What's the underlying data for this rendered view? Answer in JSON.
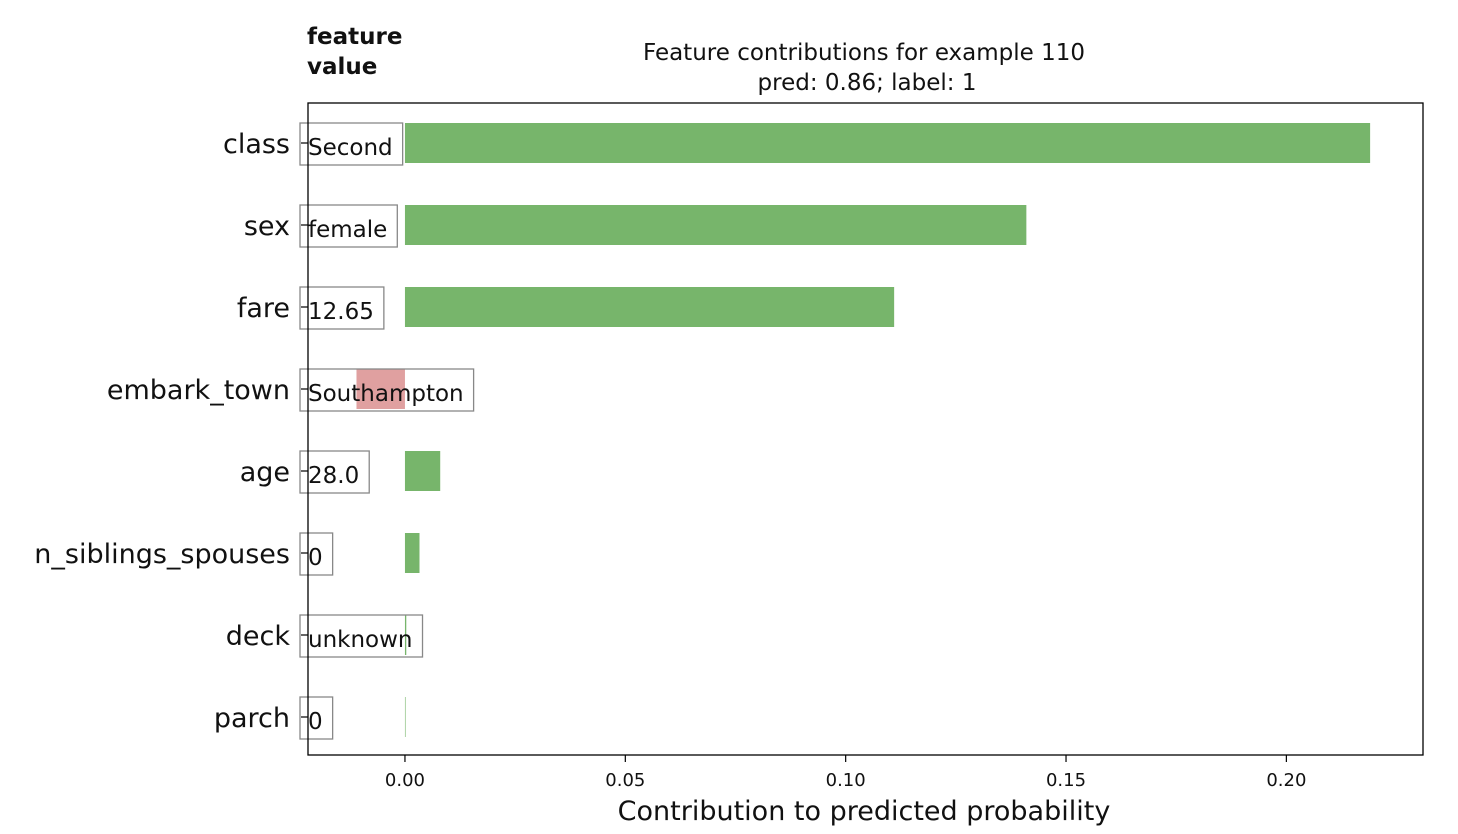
{
  "chart_data": {
    "type": "bar",
    "orientation": "horizontal",
    "title": "Feature contributions for example 110",
    "subtitle": "pred: 0.86; label: 1",
    "header": "feature\nvalue",
    "xlabel": "Contribution to predicted probability",
    "xlim": [
      -0.022,
      0.231
    ],
    "xticks": [
      "0.00",
      "0.05",
      "0.10",
      "0.15",
      "0.20"
    ],
    "xtick_values": [
      0.0,
      0.05,
      0.1,
      0.15,
      0.2
    ],
    "grid": false,
    "colors": {
      "positive": "#77b56b",
      "negative": "#e0a0a0"
    },
    "categories": [
      "class",
      "sex",
      "fare",
      "embark_town",
      "age",
      "n_siblings_spouses",
      "deck",
      "parch"
    ],
    "feature_values": [
      "Second",
      "female",
      "12.65",
      "Southampton",
      "28.0",
      "0",
      "unknown",
      "0"
    ],
    "values": [
      0.219,
      0.141,
      0.111,
      -0.011,
      0.008,
      0.0033,
      0.0003,
      0.0
    ]
  }
}
